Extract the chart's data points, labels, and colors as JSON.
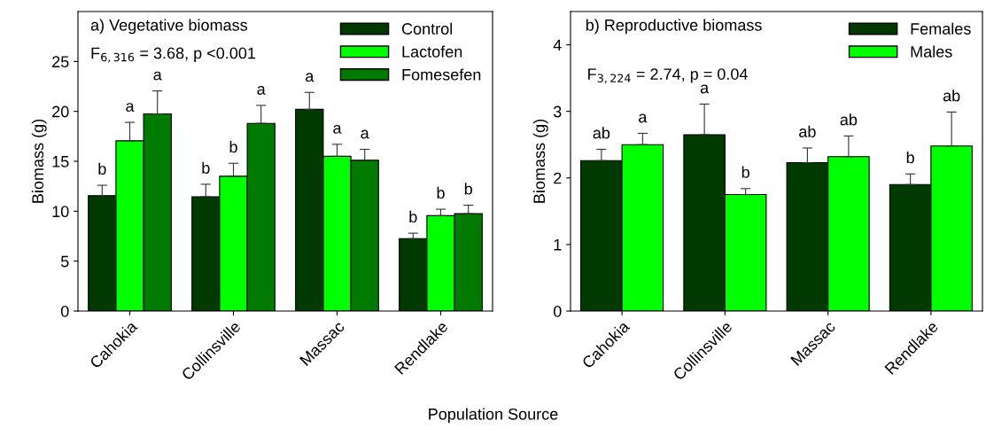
{
  "chart_data": [
    {
      "type": "bar",
      "title": "a) Vegetative biomass",
      "ylabel": "Biomass (g)",
      "xlabel": "Population Source",
      "annotations": [
        "F$_{6,316}$ = 3.68, p <0.001"
      ],
      "categories": [
        "Cahokia",
        "Collinsville",
        "Massac",
        "Rendlake"
      ],
      "series": [
        {
          "name": "Control",
          "color": "#003a00",
          "values": [
            11.55,
            11.45,
            20.2,
            7.25
          ],
          "errors": [
            1.05,
            1.25,
            1.7,
            0.55
          ],
          "value_labels": [
            "b",
            "b",
            "a",
            "b"
          ]
        },
        {
          "name": "Lactofen",
          "color": "#00ff00",
          "values": [
            17.05,
            13.5,
            15.5,
            9.55
          ],
          "errors": [
            1.85,
            1.3,
            1.2,
            0.65
          ],
          "value_labels": [
            "a",
            "b",
            "a",
            "b"
          ]
        },
        {
          "name": "Fomesefen",
          "color": "#007a00",
          "values": [
            19.75,
            18.8,
            15.1,
            9.75
          ],
          "errors": [
            2.3,
            1.8,
            1.1,
            0.85
          ],
          "value_labels": [
            "a",
            "a",
            "a",
            "b"
          ]
        }
      ],
      "ylim": [
        0,
        30
      ],
      "yticks": [
        0,
        5,
        10,
        15,
        20,
        25
      ],
      "grid": false,
      "legend": "top right"
    },
    {
      "type": "bar",
      "title": "b) Reproductive biomass",
      "ylabel": "Biomass (g)",
      "annotations": [
        "F$_{3,224}$ = 2.74, p = 0.04"
      ],
      "categories": [
        "Cahokia",
        "Collinsville",
        "Massac",
        "Rendlake"
      ],
      "series": [
        {
          "name": "Females",
          "color": "#003a00",
          "values": [
            2.26,
            2.65,
            2.23,
            1.9
          ],
          "errors": [
            0.17,
            0.46,
            0.22,
            0.16
          ],
          "value_labels": [
            "ab",
            "a",
            "ab",
            "b"
          ]
        },
        {
          "name": "Males",
          "color": "#00ff00",
          "values": [
            2.5,
            1.75,
            2.32,
            2.48
          ],
          "errors": [
            0.17,
            0.09,
            0.31,
            0.51
          ],
          "value_labels": [
            "a",
            "b",
            "ab",
            "ab"
          ]
        }
      ],
      "ylim": [
        0,
        4.5
      ],
      "yticks": [
        0,
        1,
        2,
        3,
        4
      ],
      "grid": false,
      "legend": "top right"
    }
  ]
}
